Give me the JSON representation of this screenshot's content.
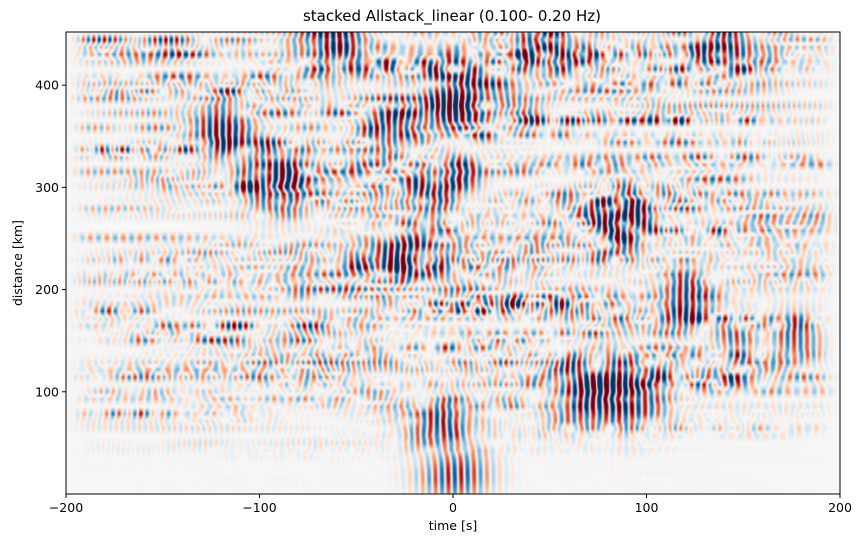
{
  "chart_data": {
    "type": "heatmap",
    "title": "stacked Allstack_linear (0.100- 0.20 Hz)",
    "xlabel": "time [s]",
    "ylabel": "distance [km]",
    "xlim": [
      -200,
      200
    ],
    "ylim": [
      0,
      452
    ],
    "xticks": [
      -200,
      -100,
      0,
      100,
      200
    ],
    "xtick_labels": [
      "−200",
      "−100",
      "0",
      "100",
      "200"
    ],
    "yticks": [
      100,
      200,
      300,
      400
    ],
    "ytick_labels": [
      "100",
      "200",
      "300",
      "400"
    ],
    "grid": false,
    "colormap": "RdBu_r",
    "colors": {
      "positive": "#67001f",
      "negative": "#053061",
      "neutral": "#f7f7f7"
    },
    "strong_arrivals": [
      {
        "time": 0,
        "distance": 25
      },
      {
        "time": -5,
        "distance": 60
      },
      {
        "time": 65,
        "distance": 100
      },
      {
        "time": 93,
        "distance": 100
      },
      {
        "time": 120,
        "distance": 185
      },
      {
        "time": 152,
        "distance": 150
      },
      {
        "time": 170,
        "distance": 150
      },
      {
        "time": 88,
        "distance": 270
      },
      {
        "time": -28,
        "distance": 230
      },
      {
        "time": -120,
        "distance": 355
      },
      {
        "time": -28,
        "distance": 350
      },
      {
        "time": 3,
        "distance": 395
      },
      {
        "time": -5,
        "distance": 310
      },
      {
        "time": -90,
        "distance": 305
      },
      {
        "time": -60,
        "distance": 440
      },
      {
        "time": 140,
        "distance": 440
      },
      {
        "time": 50,
        "distance": 435
      }
    ]
  }
}
